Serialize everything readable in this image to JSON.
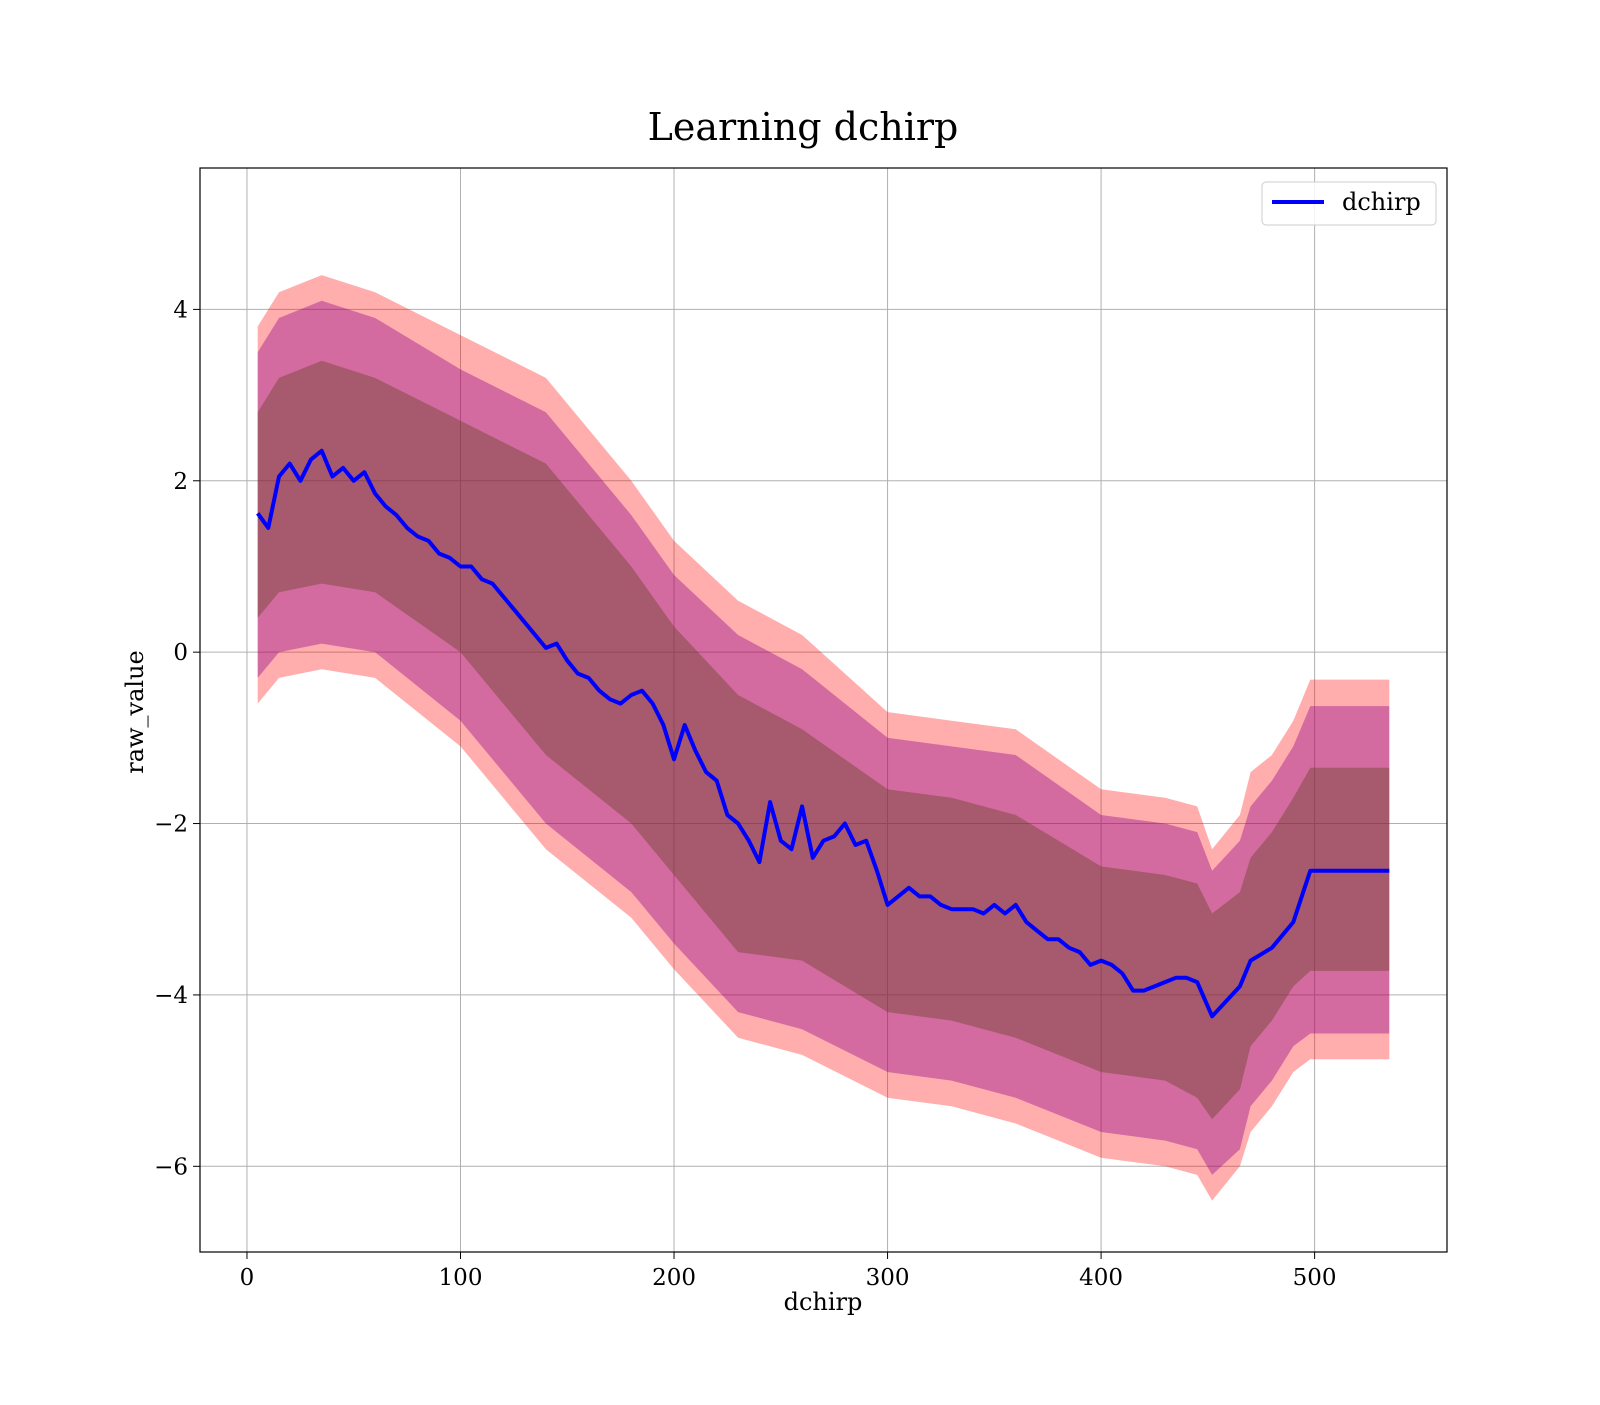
{
  "chart_data": {
    "type": "line",
    "title": "Learning dchirp",
    "xlabel": "dchirp",
    "ylabel": "raw_value",
    "xlim": [
      -22,
      562
    ],
    "ylim": [
      -7.0,
      5.65
    ],
    "x_ticks": [
      0,
      100,
      200,
      300,
      400,
      500
    ],
    "x_tick_labels": [
      "0",
      "100",
      "200",
      "300",
      "400",
      "500"
    ],
    "y_ticks": [
      -6,
      -4,
      -2,
      0,
      2,
      4
    ],
    "y_tick_labels": [
      "−6",
      "−4",
      "−2",
      "0",
      "2",
      "4"
    ],
    "grid": true,
    "legend_position": "top-right",
    "colors": {
      "line": "#0000ff",
      "band_outer": "#ff0000",
      "band_middle": "#8b008b",
      "band_inner": "#6b4226"
    },
    "series": [
      {
        "name": "dchirp",
        "x": [
          5,
          10,
          15,
          20,
          25,
          30,
          35,
          40,
          45,
          50,
          55,
          60,
          65,
          70,
          75,
          80,
          85,
          90,
          95,
          100,
          105,
          110,
          115,
          120,
          125,
          130,
          135,
          140,
          145,
          150,
          155,
          160,
          165,
          170,
          175,
          180,
          185,
          190,
          195,
          200,
          205,
          210,
          215,
          220,
          225,
          230,
          235,
          240,
          245,
          250,
          255,
          260,
          265,
          270,
          275,
          280,
          285,
          290,
          295,
          300,
          305,
          310,
          315,
          320,
          325,
          330,
          335,
          340,
          345,
          350,
          355,
          360,
          365,
          370,
          375,
          380,
          385,
          390,
          395,
          400,
          405,
          410,
          415,
          420,
          425,
          430,
          435,
          440,
          445,
          452,
          465,
          470,
          480,
          490,
          498,
          535
        ],
        "y": [
          1.62,
          1.45,
          2.05,
          2.2,
          2.0,
          2.25,
          2.35,
          2.05,
          2.15,
          2.0,
          2.1,
          1.85,
          1.7,
          1.6,
          1.45,
          1.35,
          1.3,
          1.15,
          1.1,
          1.0,
          1.0,
          0.85,
          0.8,
          0.65,
          0.5,
          0.35,
          0.2,
          0.05,
          0.1,
          -0.1,
          -0.25,
          -0.3,
          -0.45,
          -0.55,
          -0.6,
          -0.5,
          -0.45,
          -0.6,
          -0.85,
          -1.25,
          -0.85,
          -1.15,
          -1.4,
          -1.5,
          -1.9,
          -2.0,
          -2.2,
          -2.45,
          -1.75,
          -2.2,
          -2.3,
          -1.8,
          -2.4,
          -2.2,
          -2.15,
          -2.0,
          -2.25,
          -2.2,
          -2.55,
          -2.95,
          -2.85,
          -2.75,
          -2.85,
          -2.85,
          -2.95,
          -3.0,
          -3.0,
          -3.0,
          -3.05,
          -2.95,
          -3.05,
          -2.95,
          -3.15,
          -3.25,
          -3.35,
          -3.35,
          -3.45,
          -3.5,
          -3.65,
          -3.6,
          -3.65,
          -3.75,
          -3.95,
          -3.95,
          -3.9,
          -3.85,
          -3.8,
          -3.8,
          -3.85,
          -4.25,
          -3.9,
          -3.6,
          -3.45,
          -3.15,
          -2.55,
          -2.55
        ]
      }
    ],
    "bands": {
      "x": [
        5,
        15,
        35,
        60,
        100,
        140,
        180,
        200,
        230,
        260,
        300,
        330,
        360,
        400,
        430,
        445,
        452,
        465,
        470,
        480,
        490,
        498,
        535
      ],
      "outer_upper": [
        3.8,
        4.2,
        4.4,
        4.2,
        3.7,
        3.2,
        2.0,
        1.3,
        0.6,
        0.2,
        -0.7,
        -0.8,
        -0.9,
        -1.6,
        -1.7,
        -1.8,
        -2.3,
        -1.9,
        -1.4,
        -1.2,
        -0.8,
        -0.32,
        -0.32
      ],
      "outer_lower": [
        -0.6,
        -0.3,
        -0.2,
        -0.3,
        -1.1,
        -2.3,
        -3.1,
        -3.7,
        -4.5,
        -4.7,
        -5.2,
        -5.3,
        -5.5,
        -5.9,
        -6.0,
        -6.1,
        -6.4,
        -6.0,
        -5.6,
        -5.3,
        -4.9,
        -4.75,
        -4.75
      ],
      "middle_upper": [
        3.5,
        3.9,
        4.1,
        3.9,
        3.3,
        2.8,
        1.6,
        0.9,
        0.2,
        -0.2,
        -1.0,
        -1.1,
        -1.2,
        -1.9,
        -2.0,
        -2.1,
        -2.55,
        -2.2,
        -1.8,
        -1.5,
        -1.1,
        -0.63,
        -0.63
      ],
      "middle_lower": [
        -0.3,
        0.0,
        0.1,
        0.0,
        -0.8,
        -2.0,
        -2.8,
        -3.4,
        -4.2,
        -4.4,
        -4.9,
        -5.0,
        -5.2,
        -5.6,
        -5.7,
        -5.8,
        -6.1,
        -5.8,
        -5.3,
        -5.0,
        -4.6,
        -4.45,
        -4.45
      ],
      "inner_upper": [
        2.8,
        3.2,
        3.4,
        3.2,
        2.7,
        2.2,
        1.0,
        0.3,
        -0.5,
        -0.9,
        -1.6,
        -1.7,
        -1.9,
        -2.5,
        -2.6,
        -2.7,
        -3.05,
        -2.8,
        -2.4,
        -2.1,
        -1.7,
        -1.35,
        -1.35
      ],
      "inner_lower": [
        0.4,
        0.7,
        0.8,
        0.7,
        0.0,
        -1.2,
        -2.0,
        -2.6,
        -3.5,
        -3.6,
        -4.2,
        -4.3,
        -4.5,
        -4.9,
        -5.0,
        -5.2,
        -5.45,
        -5.1,
        -4.6,
        -4.3,
        -3.9,
        -3.72,
        -3.72
      ]
    }
  }
}
